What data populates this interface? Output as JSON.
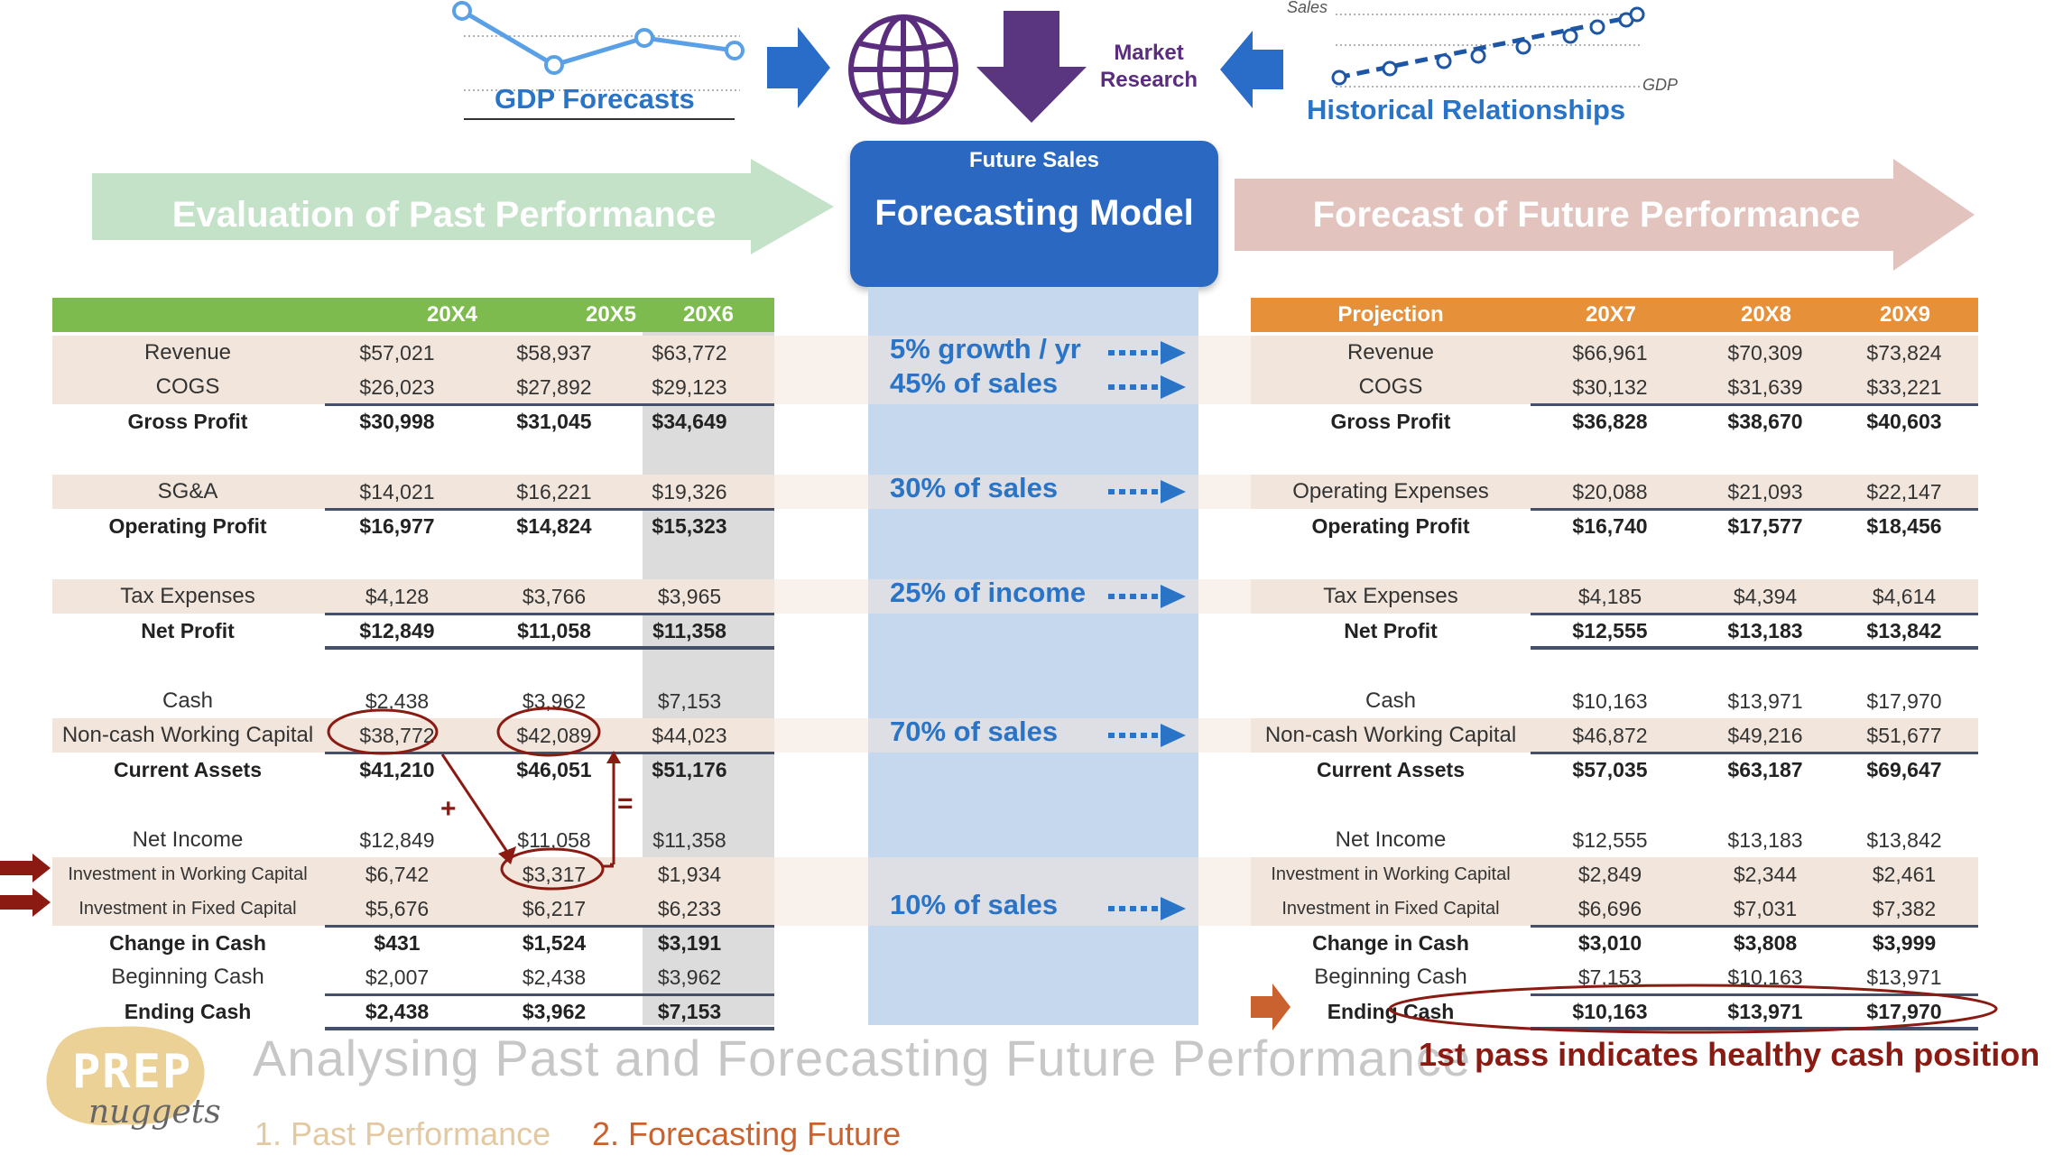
{
  "top": {
    "gdp_forecasts_label": "GDP Forecasts",
    "market_research_label": [
      "Market",
      "Research"
    ],
    "historical_relationships_label": "Historical Relationships",
    "hist_sales_axis": "Sales",
    "hist_gdp_axis": "GDP"
  },
  "banners": {
    "left": "Evaluation of Past Performance",
    "center_sub": "Future Sales",
    "center": "Forecasting Model",
    "right": "Forecast of Future Performance"
  },
  "left_table": {
    "headers": [
      "",
      "20X4",
      "20X5",
      "20X6"
    ],
    "rows": [
      {
        "label": "Revenue",
        "v": [
          "$57,021",
          "$58,937",
          "$63,772"
        ]
      },
      {
        "label": "COGS",
        "v": [
          "$26,023",
          "$27,892",
          "$29,123"
        ]
      },
      {
        "label": "Gross Profit",
        "v": [
          "$30,998",
          "$31,045",
          "$34,649"
        ]
      },
      {
        "label": "SG&A",
        "v": [
          "$14,021",
          "$16,221",
          "$19,326"
        ]
      },
      {
        "label": "Operating Profit",
        "v": [
          "$16,977",
          "$14,824",
          "$15,323"
        ]
      },
      {
        "label": "Tax Expenses",
        "v": [
          "$4,128",
          "$3,766",
          "$3,965"
        ]
      },
      {
        "label": "Net Profit",
        "v": [
          "$12,849",
          "$11,058",
          "$11,358"
        ]
      },
      {
        "label": "Cash",
        "v": [
          "$2,438",
          "$3,962",
          "$7,153"
        ]
      },
      {
        "label": "Non-cash Working Capital",
        "v": [
          "$38,772",
          "$42,089",
          "$44,023"
        ]
      },
      {
        "label": "Current Assets",
        "v": [
          "$41,210",
          "$46,051",
          "$51,176"
        ]
      },
      {
        "label": "Net Income",
        "v": [
          "$12,849",
          "$11,058",
          "$11,358"
        ]
      },
      {
        "label": "Investment in Working Capital",
        "v": [
          "$6,742",
          "$3,317",
          "$1,934"
        ]
      },
      {
        "label": "Investment in Fixed Capital",
        "v": [
          "$5,676",
          "$6,217",
          "$6,233"
        ]
      },
      {
        "label": "Change in Cash",
        "v": [
          "$431",
          "$1,524",
          "$3,191"
        ]
      },
      {
        "label": "Beginning Cash",
        "v": [
          "$2,007",
          "$2,438",
          "$3,962"
        ]
      },
      {
        "label": "Ending Cash",
        "v": [
          "$2,438",
          "$3,962",
          "$7,153"
        ]
      }
    ]
  },
  "methods": [
    "5% growth / yr",
    "45% of sales",
    "30% of sales",
    "25% of income",
    "70% of sales",
    "10% of sales"
  ],
  "annotations": {
    "plus": "+",
    "equals": "="
  },
  "right_table": {
    "headers": [
      "Projection",
      "20X7",
      "20X8",
      "20X9"
    ],
    "rows": [
      {
        "label": "Revenue",
        "v": [
          "$66,961",
          "$70,309",
          "$73,824"
        ]
      },
      {
        "label": "COGS",
        "v": [
          "$30,132",
          "$31,639",
          "$33,221"
        ]
      },
      {
        "label": "Gross Profit",
        "v": [
          "$36,828",
          "$38,670",
          "$40,603"
        ]
      },
      {
        "label": "Operating Expenses",
        "v": [
          "$20,088",
          "$21,093",
          "$22,147"
        ]
      },
      {
        "label": "Operating Profit",
        "v": [
          "$16,740",
          "$17,577",
          "$18,456"
        ]
      },
      {
        "label": "Tax Expenses",
        "v": [
          "$4,185",
          "$4,394",
          "$4,614"
        ]
      },
      {
        "label": "Net Profit",
        "v": [
          "$12,555",
          "$13,183",
          "$13,842"
        ]
      },
      {
        "label": "Cash",
        "v": [
          "$10,163",
          "$13,971",
          "$17,970"
        ]
      },
      {
        "label": "Non-cash Working Capital",
        "v": [
          "$46,872",
          "$49,216",
          "$51,677"
        ]
      },
      {
        "label": "Current Assets",
        "v": [
          "$57,035",
          "$63,187",
          "$69,647"
        ]
      },
      {
        "label": "Net Income",
        "v": [
          "$12,555",
          "$13,183",
          "$13,842"
        ]
      },
      {
        "label": "Investment in Working Capital",
        "v": [
          "$2,849",
          "$2,344",
          "$2,461"
        ]
      },
      {
        "label": "Investment in Fixed Capital",
        "v": [
          "$6,696",
          "$7,031",
          "$7,382"
        ]
      },
      {
        "label": "Change in Cash",
        "v": [
          "$3,010",
          "$3,808",
          "$3,999"
        ]
      },
      {
        "label": "Beginning Cash",
        "v": [
          "$7,153",
          "$10,163",
          "$13,971"
        ]
      },
      {
        "label": "Ending Cash",
        "v": [
          "$10,163",
          "$13,971",
          "$17,970"
        ]
      }
    ]
  },
  "footer": {
    "title": "Analysing Past and Forecasting Future Performance",
    "note": "1st pass indicates healthy cash position",
    "logo_top": "PREP",
    "logo_bottom": "nuggets",
    "step1": "1. Past Performance",
    "step2": "2. Forecasting Future"
  },
  "colors": {
    "green_header": "#7dbb4f",
    "orange_header": "#e6913a",
    "blue_model": "#2a68c2",
    "row_shade": "#f2e6dc",
    "method_blue": "#2a74c7",
    "dark_red": "#8b1a12",
    "purple": "#5b2d7e"
  }
}
